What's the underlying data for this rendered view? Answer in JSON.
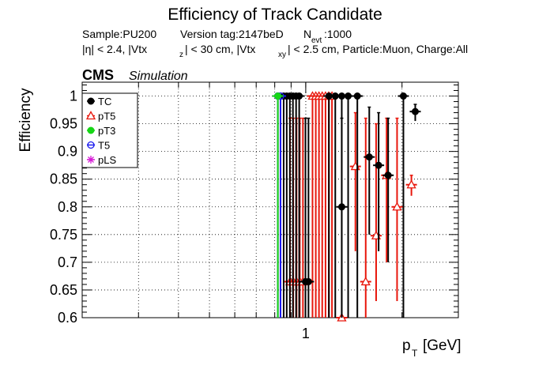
{
  "chart_data": {
    "type": "scatter",
    "title": "Efficiency of Track Candidate",
    "subtitle_line1": {
      "sample": "Sample:PU200",
      "version": "Version tag:2147beD",
      "n_main": "N",
      "n_sub": "evt",
      "n_value": ":1000"
    },
    "subtitle_line2": {
      "p1": "|η| < 2.4, |Vtx",
      "s1": "z",
      "p2": "| < 30 cm, |Vtx",
      "s2": "xy",
      "p3": "| < 2.5 cm, Particle:Muon, Charge:All"
    },
    "cms_label": "CMS",
    "cms_sublabel": "Simulation",
    "ylabel": "Efficiency",
    "xlabel_main": "p",
    "xlabel_sub": "T",
    "xlabel_unit": " [GeV]",
    "xscale": "log",
    "xlim": [
      0.2,
      3.0
    ],
    "ylim": [
      0.6,
      1.025
    ],
    "x_tick_labels": [
      {
        "x": 1,
        "label": "1"
      }
    ],
    "y_ticks": [
      0.6,
      0.65,
      0.7,
      0.75,
      0.8,
      0.85,
      0.9,
      0.95,
      1
    ],
    "y_tick_labels": [
      "0.6",
      "0.65",
      "0.7",
      "0.75",
      "0.8",
      "0.85",
      "0.9",
      "0.95",
      "1"
    ],
    "grid": true,
    "legend_position": "top-left",
    "series": [
      {
        "name": "TC",
        "color": "#000000",
        "marker": "filled-circle",
        "points": [
          {
            "x": 0.818,
            "y": 1.0,
            "ylo": 0.6
          },
          {
            "x": 0.853,
            "y": 1.0,
            "ylo": 0.6
          },
          {
            "x": 0.872,
            "y": 1.0,
            "ylo": 0.6
          },
          {
            "x": 0.892,
            "y": 1.0,
            "ylo": 0.6
          },
          {
            "x": 0.912,
            "y": 1.0,
            "ylo": 0.6
          },
          {
            "x": 0.933,
            "y": 1.0,
            "ylo": 0.6
          },
          {
            "x": 0.954,
            "y": 1.0,
            "ylo": 0.6
          },
          {
            "x": 0.998,
            "y": 0.665,
            "ylo": 0.6,
            "yhi": 0.96
          },
          {
            "x": 1.02,
            "y": 0.665,
            "ylo": 0.6,
            "yhi": 0.96
          },
          {
            "x": 1.182,
            "y": 1.0,
            "ylo": 0.6
          },
          {
            "x": 1.237,
            "y": 1.0,
            "ylo": 0.6
          },
          {
            "x": 1.296,
            "y": 0.8,
            "ylo": 0.6,
            "yhi": 0.96
          },
          {
            "x": 1.296,
            "y": 1.0,
            "ylo": 0.6
          },
          {
            "x": 1.357,
            "y": 1.0,
            "ylo": 0.6
          },
          {
            "x": 1.45,
            "y": 1.0,
            "ylo": 0.6
          },
          {
            "x": 1.58,
            "y": 0.89,
            "ylo": 0.75,
            "yhi": 0.98
          },
          {
            "x": 1.69,
            "y": 0.875,
            "ylo": 0.72,
            "yhi": 0.97
          },
          {
            "x": 1.81,
            "y": 0.857,
            "ylo": 0.7,
            "yhi": 0.96
          },
          {
            "x": 2.02,
            "y": 1.0,
            "ylo": 0.6
          },
          {
            "x": 2.2,
            "y": 0.972,
            "ylo": 0.955,
            "yhi": 0.985
          }
        ]
      },
      {
        "name": "pT5",
        "color": "#e8170c",
        "marker": "open-triangle",
        "points": [
          {
            "x": 0.893,
            "y": 0.665,
            "ylo": 0.6,
            "yhi": 0.96
          },
          {
            "x": 0.914,
            "y": 0.665,
            "ylo": 0.6,
            "yhi": 0.96
          },
          {
            "x": 0.936,
            "y": 0.665,
            "ylo": 0.6,
            "yhi": 0.96
          },
          {
            "x": 0.958,
            "y": 0.665,
            "ylo": 0.6,
            "yhi": 0.96
          },
          {
            "x": 0.98,
            "y": 0.665,
            "ylo": 0.6,
            "yhi": 0.96
          },
          {
            "x": 1.05,
            "y": 1.0,
            "ylo": 0.6
          },
          {
            "x": 1.075,
            "y": 1.0,
            "ylo": 0.6
          },
          {
            "x": 1.1,
            "y": 1.0,
            "ylo": 0.6
          },
          {
            "x": 1.126,
            "y": 1.0,
            "ylo": 0.6
          },
          {
            "x": 1.153,
            "y": 1.0,
            "ylo": 0.6
          },
          {
            "x": 1.18,
            "y": 1.0,
            "ylo": 0.6
          },
          {
            "x": 1.208,
            "y": 1.0,
            "ylo": 0.6
          },
          {
            "x": 1.296,
            "y": 0.6,
            "ylo": 0.6
          },
          {
            "x": 1.43,
            "y": 0.873,
            "ylo": 0.72,
            "yhi": 0.97
          },
          {
            "x": 1.54,
            "y": 0.665,
            "ylo": 0.6,
            "yhi": 0.96
          },
          {
            "x": 1.66,
            "y": 0.748,
            "ylo": 0.63,
            "yhi": 0.95
          },
          {
            "x": 1.79,
            "y": 0.857,
            "ylo": 0.7,
            "yhi": 0.96
          },
          {
            "x": 1.93,
            "y": 0.8,
            "ylo": 0.63,
            "yhi": 0.96
          },
          {
            "x": 2.14,
            "y": 0.84,
            "ylo": 0.82,
            "yhi": 0.857
          }
        ]
      },
      {
        "name": "pT3",
        "color": "#16d616",
        "marker": "filled-circle",
        "points": [
          {
            "x": 0.818,
            "y": 1.0,
            "ylo": 0.6
          }
        ]
      },
      {
        "name": "T5",
        "color": "#1a1aee",
        "marker": "open-circle",
        "points": [
          {
            "x": 0.818,
            "y": 1.0,
            "ylo": 0.6
          },
          {
            "x": 0.834,
            "y": 1.0,
            "ylo": 0.6
          }
        ]
      },
      {
        "name": "pLS",
        "color": "#d61bd6",
        "marker": "open-star",
        "points": []
      }
    ]
  }
}
